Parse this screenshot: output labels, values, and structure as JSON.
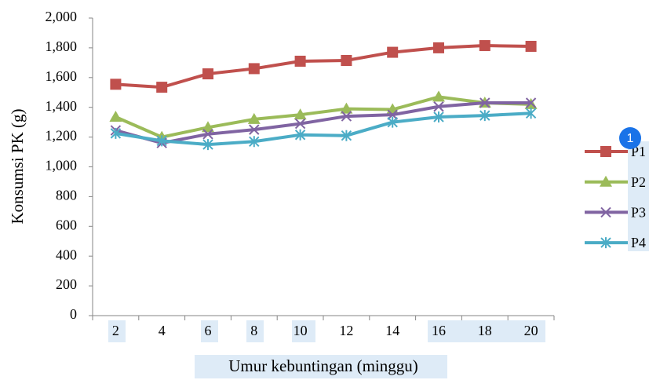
{
  "chart_data": {
    "type": "line",
    "y_label": "Konsumsi PK (g)",
    "x_label": "Umur kebuntingan (minggu)",
    "categories": [
      "2",
      "4",
      "6",
      "8",
      "10",
      "12",
      "14",
      "16",
      "18",
      "20"
    ],
    "series": [
      {
        "name": "P1",
        "color": "#c0504d",
        "marker": "square",
        "values": [
          1555,
          1535,
          1625,
          1660,
          1710,
          1715,
          1770,
          1800,
          1815,
          1810
        ]
      },
      {
        "name": "P2",
        "color": "#9bbb59",
        "marker": "triangle",
        "values": [
          1335,
          1200,
          1265,
          1320,
          1350,
          1390,
          1385,
          1470,
          1430,
          1420
        ]
      },
      {
        "name": "P3",
        "color": "#8064a2",
        "marker": "x",
        "values": [
          1245,
          1160,
          1220,
          1250,
          1290,
          1340,
          1350,
          1405,
          1430,
          1430
        ]
      },
      {
        "name": "P4",
        "color": "#4bacc6",
        "marker": "star",
        "values": [
          1225,
          1175,
          1150,
          1170,
          1215,
          1210,
          1300,
          1335,
          1345,
          1360
        ]
      }
    ],
    "ylim": [
      0,
      2000
    ],
    "yticks": [
      0,
      200,
      400,
      600,
      800,
      {
        "value": 1000,
        "label": "1,000"
      },
      {
        "value": 1200,
        "label": "1,200"
      },
      {
        "value": 1400,
        "label": "1,400"
      },
      {
        "value": 1600,
        "label": "1,600"
      },
      {
        "value": 1800,
        "label": "1,800"
      },
      {
        "value": 2000,
        "label": "2,000"
      }
    ],
    "legend": "right",
    "annotations": [
      "1"
    ]
  }
}
